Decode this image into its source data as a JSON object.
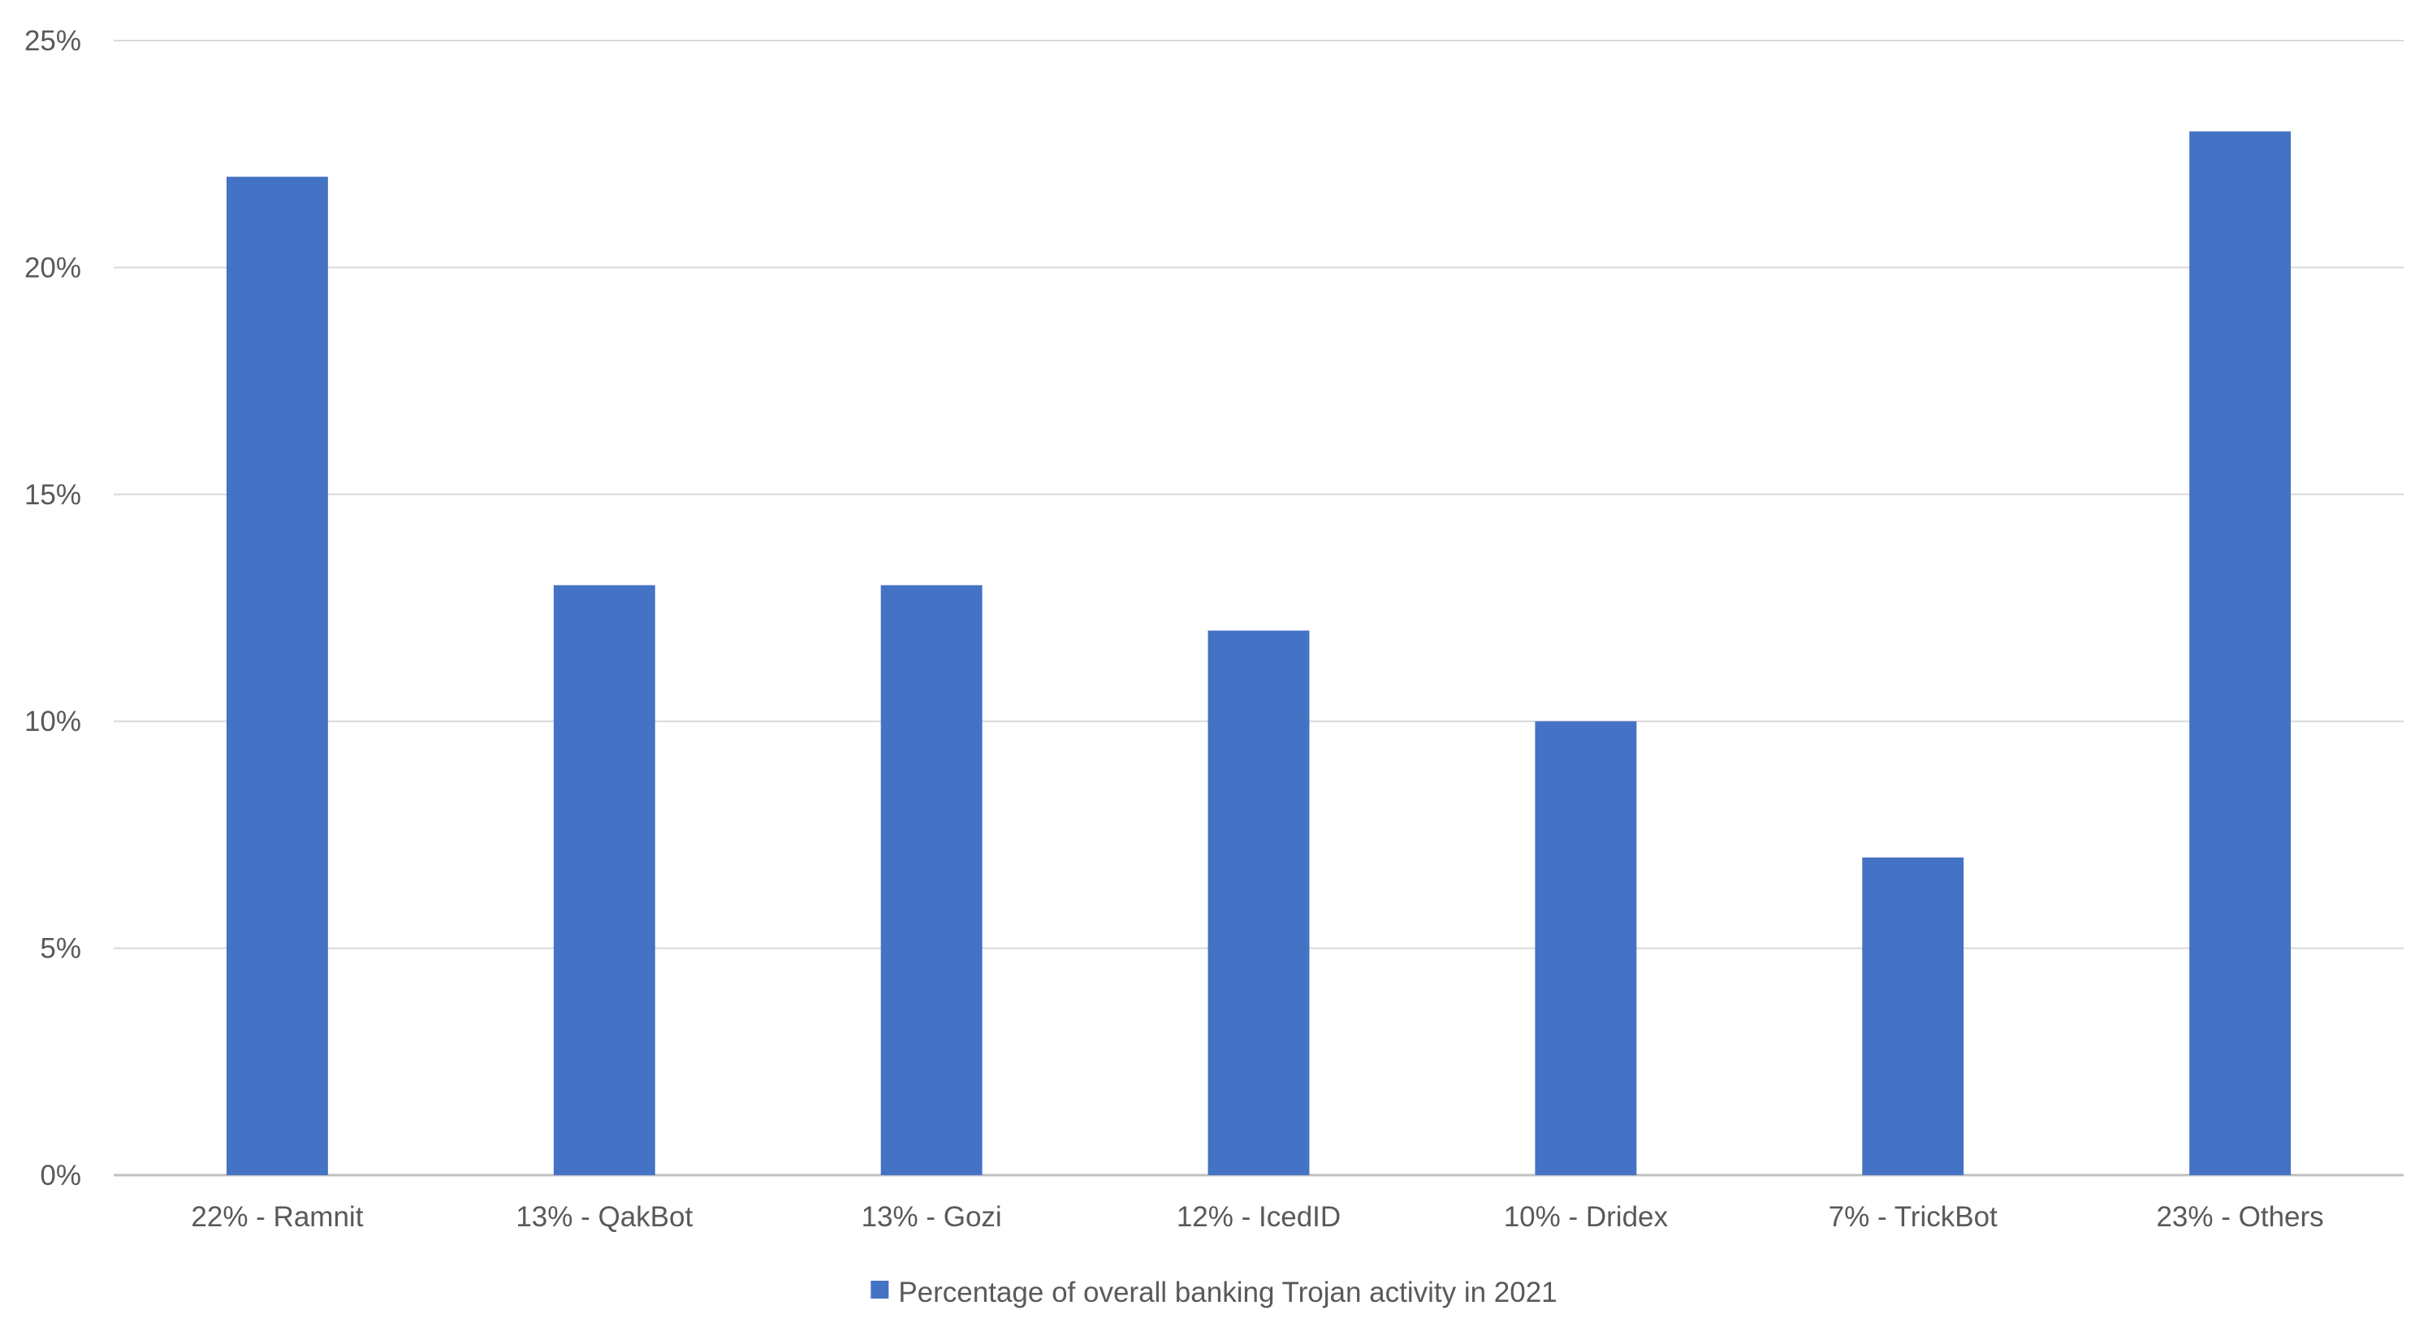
{
  "chart_data": {
    "type": "bar",
    "categories": [
      "22% - Ramnit",
      "13% - QakBot",
      "13% - Gozi",
      "12% - IcedID",
      "10% - Dridex",
      "7% - TrickBot",
      "23% - Others"
    ],
    "series": [
      {
        "name": "Percentage of overall banking Trojan activity in 2021",
        "values": [
          22,
          13,
          13,
          12,
          10,
          7,
          23
        ],
        "color": "#4472C4"
      }
    ],
    "y_ticks": [
      "0%",
      "5%",
      "10%",
      "15%",
      "20%",
      "25%"
    ],
    "ylim": [
      0,
      25
    ],
    "y_unit": "%",
    "grid": true,
    "legend_position": "bottom",
    "title": "",
    "xlabel": "",
    "ylabel": ""
  },
  "colors": {
    "bar": "#4472C4",
    "grid": "#d9d9d9",
    "axis": "#bfbfbf",
    "text": "#595959"
  }
}
